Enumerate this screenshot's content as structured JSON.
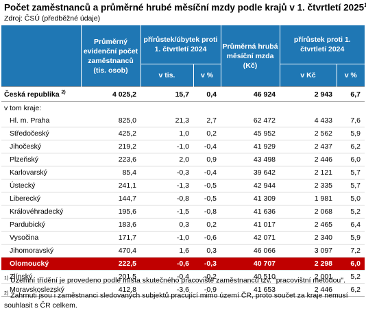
{
  "title": "Počet zaměstnanců a průměrné hrubé měsíční mzdy podle krajů v 1. čtvrtletí 2025",
  "title_note": "1)",
  "source": "Zdroj: ČSÚ (předběžné údaje)",
  "headers": {
    "employees": "Průměrný evidenční počet zaměstnanců (tis. osob)",
    "employees_change": "přírůstek/úbytek proti 1. čtvrtletí 2024",
    "wage": "Průměrná hrubá měsíční mzda (Kč)",
    "wage_change": "přírůstek proti 1. čtvrtletí 2024",
    "v_tis": "v tis.",
    "v_pct_1": "v %",
    "v_kc": "v Kč",
    "v_pct_2": "v %"
  },
  "total": {
    "name": "Česká republika",
    "note": "2)",
    "employees": "4 025,2",
    "change_tis": "15,7",
    "change_pct": "0,4",
    "wage": "46 924",
    "wage_change_kc": "2 943",
    "wage_change_pct": "6,7"
  },
  "group_label": "v tom kraje:",
  "rows": [
    {
      "name": "Hl. m. Praha",
      "employees": "825,0",
      "change_tis": "21,3",
      "change_pct": "2,7",
      "wage": "62 472",
      "wage_change_kc": "4 433",
      "wage_change_pct": "7,6"
    },
    {
      "name": "Středočeský",
      "employees": "425,2",
      "change_tis": "1,0",
      "change_pct": "0,2",
      "wage": "45 952",
      "wage_change_kc": "2 562",
      "wage_change_pct": "5,9"
    },
    {
      "name": "Jihočeský",
      "employees": "219,2",
      "change_tis": "-1,0",
      "change_pct": "-0,4",
      "wage": "41 929",
      "wage_change_kc": "2 437",
      "wage_change_pct": "6,2"
    },
    {
      "name": "Plzeňský",
      "employees": "223,6",
      "change_tis": "2,0",
      "change_pct": "0,9",
      "wage": "43 498",
      "wage_change_kc": "2 446",
      "wage_change_pct": "6,0"
    },
    {
      "name": "Karlovarský",
      "employees": "85,4",
      "change_tis": "-0,3",
      "change_pct": "-0,4",
      "wage": "39 642",
      "wage_change_kc": "2 121",
      "wage_change_pct": "5,7"
    },
    {
      "name": "Ústecký",
      "employees": "241,1",
      "change_tis": "-1,3",
      "change_pct": "-0,5",
      "wage": "42 944",
      "wage_change_kc": "2 335",
      "wage_change_pct": "5,7"
    },
    {
      "name": "Liberecký",
      "employees": "144,7",
      "change_tis": "-0,8",
      "change_pct": "-0,5",
      "wage": "41 309",
      "wage_change_kc": "1 981",
      "wage_change_pct": "5,0"
    },
    {
      "name": "Královéhradecký",
      "employees": "195,6",
      "change_tis": "-1,5",
      "change_pct": "-0,8",
      "wage": "41 636",
      "wage_change_kc": "2 068",
      "wage_change_pct": "5,2"
    },
    {
      "name": "Pardubický",
      "employees": "183,6",
      "change_tis": "0,3",
      "change_pct": "0,2",
      "wage": "41 017",
      "wage_change_kc": "2 465",
      "wage_change_pct": "6,4"
    },
    {
      "name": "Vysočina",
      "employees": "171,7",
      "change_tis": "-1,0",
      "change_pct": "-0,6",
      "wage": "42 071",
      "wage_change_kc": "2 340",
      "wage_change_pct": "5,9"
    },
    {
      "name": "Jihomoravský",
      "employees": "470,4",
      "change_tis": "1,6",
      "change_pct": "0,3",
      "wage": "46 066",
      "wage_change_kc": "3 097",
      "wage_change_pct": "7,2"
    },
    {
      "name": "Olomoucký",
      "employees": "222,5",
      "change_tis": "-0,6",
      "change_pct": "-0,3",
      "wage": "40 707",
      "wage_change_kc": "2 298",
      "wage_change_pct": "6,0",
      "highlight": true
    },
    {
      "name": "Zlínský",
      "employees": "201,5",
      "change_tis": "-0,4",
      "change_pct": "-0,2",
      "wage": "40 510",
      "wage_change_kc": "2 001",
      "wage_change_pct": "5,2"
    },
    {
      "name": "Moravskoslezský",
      "employees": "412,8",
      "change_tis": "-3,6",
      "change_pct": "-0,9",
      "wage": "41 653",
      "wage_change_kc": "2 446",
      "wage_change_pct": "6,2"
    }
  ],
  "footnotes": [
    {
      "mark": "1)",
      "text": "Územní třídění je provedeno podle místa skutečného pracoviště zaměstnanců tzv. \"pracovištní metodou\"."
    },
    {
      "mark": "2)",
      "text": "Zahrnuti jsou i zaměstnanci sledovaných subjektů pracující mimo území ČR, proto součet za kraje nemusí souhlasit s ČR celkem."
    }
  ],
  "colors": {
    "header": "#1f77b4",
    "highlight": "#c00000"
  }
}
